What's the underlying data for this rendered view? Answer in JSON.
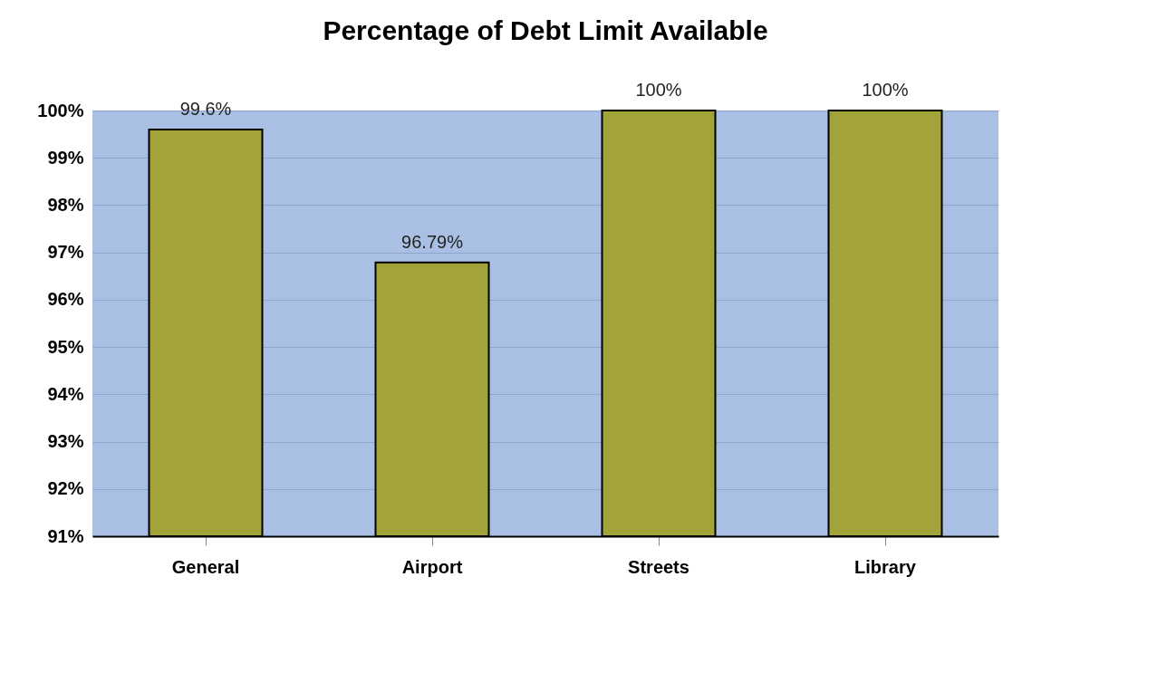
{
  "chart_data": {
    "type": "bar",
    "title": "Percentage of Debt Limit Available",
    "categories": [
      "General",
      "Airport",
      "Streets",
      "Library"
    ],
    "values": [
      99.6,
      96.79,
      100,
      100
    ],
    "value_labels": [
      "99.6%",
      "96.79%",
      "100%",
      "100%"
    ],
    "color": "#a2a43a",
    "ylim": [
      91,
      100
    ],
    "yticks": [
      {
        "value": 91,
        "label": "91%"
      },
      {
        "value": 92,
        "label": "92%"
      },
      {
        "value": 93,
        "label": "93%"
      },
      {
        "value": 94,
        "label": "94%"
      },
      {
        "value": 95,
        "label": "95%"
      },
      {
        "value": 96,
        "label": "96%"
      },
      {
        "value": 97,
        "label": "97%"
      },
      {
        "value": 98,
        "label": "98%"
      },
      {
        "value": 99,
        "label": "99%"
      },
      {
        "value": 100,
        "label": "100%"
      }
    ],
    "grid": "y"
  }
}
